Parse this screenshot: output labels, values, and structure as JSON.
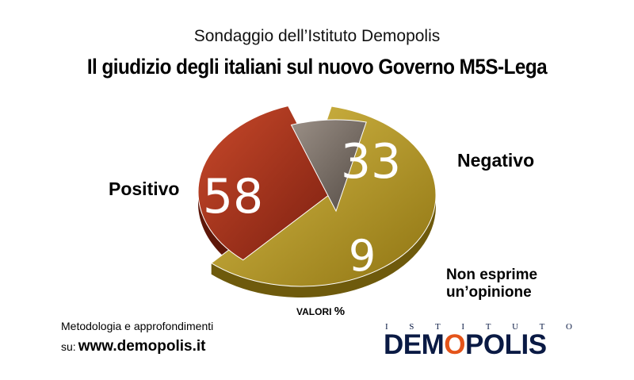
{
  "header": {
    "subtitle": "Sondaggio dell’Istituto Demopolis",
    "title": "Il giudizio degli italiani sul nuovo Governo M5S-Lega"
  },
  "chart_data": {
    "type": "pie",
    "title": "Il giudizio degli italiani sul nuovo Governo M5S-Lega",
    "unit_label": "VALORI",
    "unit_symbol": "%",
    "slices": [
      {
        "label": "Positivo",
        "value": 58,
        "color": "#b29420",
        "exploded": false
      },
      {
        "label": "Negativo",
        "value": 33,
        "color": "#a8321c",
        "exploded": true
      },
      {
        "label": "Non esprime un’opinione",
        "label_lines": [
          "Non esprime",
          "un’opinione"
        ],
        "value": 9,
        "color": "#7a7067",
        "exploded": true
      }
    ]
  },
  "footer": {
    "method_label": "Metodologia e approfondimenti",
    "site_prefix": "su:",
    "site_url": "www.demopolis.it"
  },
  "logo": {
    "top_word": "ISTITUTO",
    "main_before": "DEM",
    "main_o": "O",
    "main_after": "POLIS"
  }
}
